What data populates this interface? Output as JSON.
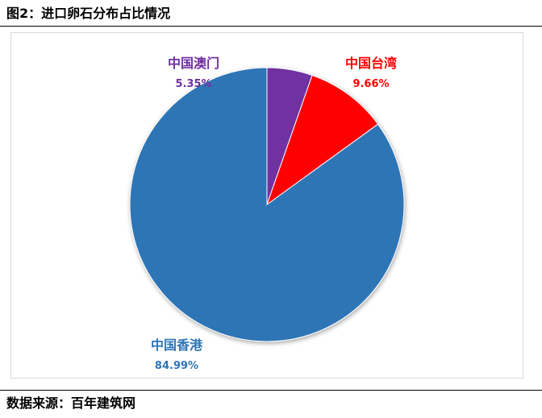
{
  "figure": {
    "title": "图2：进口卵石分布占比情况",
    "source": "数据来源：百年建筑网"
  },
  "chart_data": {
    "type": "pie",
    "title": "",
    "start_angle_deg": 0,
    "direction": "clockwise",
    "legend": "none",
    "slices": [
      {
        "name": "中国澳门",
        "value": 5.35,
        "value_label": "5.35%",
        "color": "#7030a0"
      },
      {
        "name": "中国台湾",
        "value": 9.66,
        "value_label": "9.66%",
        "color": "#ff0000"
      },
      {
        "name": "中国香港",
        "value": 84.99,
        "value_label": "84.99%",
        "color": "#2e75b6"
      }
    ]
  }
}
